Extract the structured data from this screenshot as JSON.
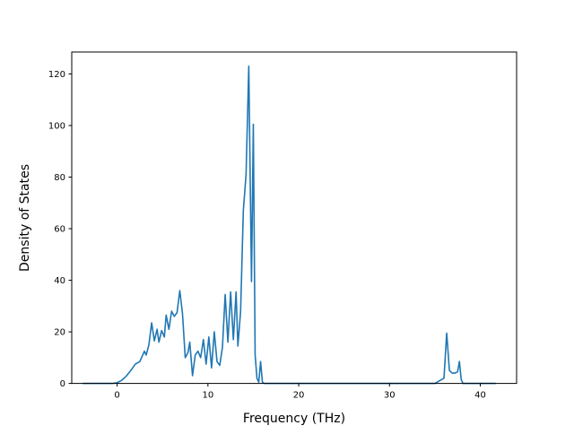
{
  "chart_data": {
    "type": "line",
    "title": "",
    "xlabel": "Frequency (THz)",
    "ylabel": "Density of States",
    "xlim": [
      -5.0,
      44.0
    ],
    "ylim": [
      0,
      128.5
    ],
    "xticks": [
      0,
      10,
      20,
      30,
      40
    ],
    "yticks": [
      0,
      20,
      40,
      60,
      80,
      100,
      120
    ],
    "grid": false,
    "legend": "none",
    "line_color": "#1f77b4",
    "series": [
      {
        "x": [
          -3.8,
          -1.0,
          -0.5,
          0,
          0.5,
          1.0,
          1.5,
          2.0,
          2.5,
          3.0,
          3.2,
          3.5,
          3.8,
          4.1,
          4.4,
          4.6,
          4.9,
          5.2,
          5.4,
          5.7,
          6.0,
          6.3,
          6.6,
          6.9,
          7.2,
          7.5,
          7.8,
          8.0,
          8.3,
          8.6,
          8.9,
          9.2,
          9.5,
          9.8,
          10.1,
          10.4,
          10.7,
          11.0,
          11.3,
          11.6,
          11.9,
          12.2,
          12.5,
          12.8,
          13.1,
          13.3,
          13.6,
          13.9,
          14.2,
          14.5,
          14.8,
          15.0,
          15.2,
          15.4,
          15.6,
          15.8,
          16.0,
          16.2,
          16.4,
          16.6,
          16.8,
          17.0,
          20,
          25,
          30,
          35,
          36.0,
          36.3,
          36.6,
          36.9,
          37.2,
          37.5,
          37.7,
          37.9,
          38.1,
          38.5,
          41.7
        ],
        "y": [
          0,
          0,
          0,
          0.3,
          1.2,
          2.8,
          5.0,
          7.5,
          8.5,
          12.5,
          11.0,
          15.0,
          23.5,
          16.5,
          21.0,
          16.0,
          20.5,
          18.0,
          26.5,
          21.0,
          28.0,
          26.0,
          27.5,
          36.0,
          27.0,
          10.0,
          12.0,
          16.0,
          3.0,
          11.0,
          12.5,
          10.0,
          17.0,
          7.5,
          18.0,
          6.0,
          20.0,
          8.5,
          7.0,
          14.0,
          34.5,
          16.0,
          35.5,
          17.0,
          35.5,
          14.5,
          28.0,
          67.0,
          81.0,
          123.0,
          39.5,
          100.5,
          11.0,
          2.0,
          0.5,
          8.5,
          0.5,
          0,
          0,
          0,
          0,
          0,
          0,
          0,
          0,
          0,
          2.0,
          19.5,
          5.0,
          4.0,
          4.0,
          4.5,
          8.5,
          1.5,
          0,
          0,
          0
        ]
      }
    ]
  }
}
